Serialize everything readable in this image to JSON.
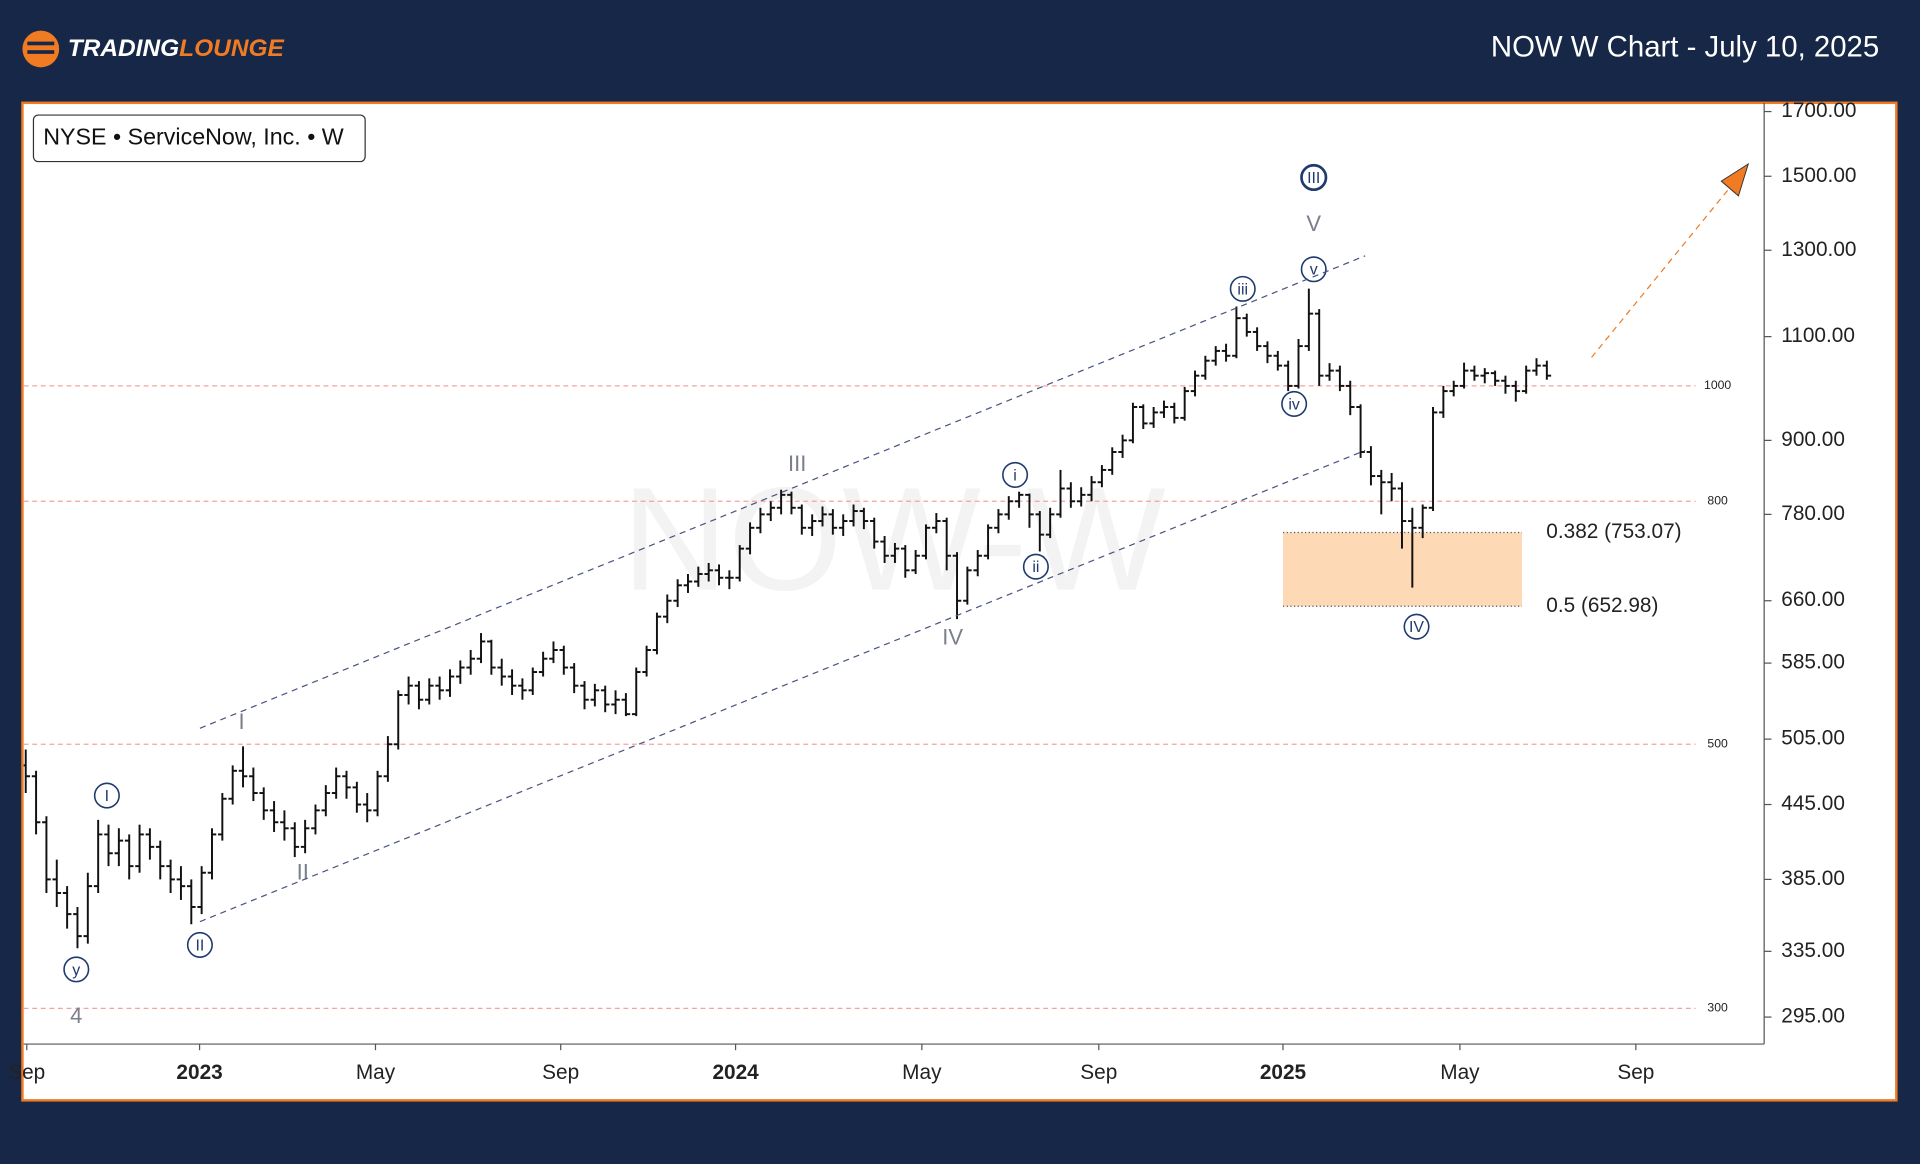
{
  "brand_first": "TRADING",
  "brand_second": "LOUNGE",
  "header_title": "NOW W Chart - July 10, 2025",
  "chart_data": {
    "type": "ohlc",
    "legend_text": "NYSE • ServiceNow, Inc. • W",
    "watermark": "NOW-W",
    "log_scale": true,
    "ylim": [
      280,
      1729
    ],
    "yticks": [
      {
        "value": 1700,
        "label": "1700.00"
      },
      {
        "value": 1500,
        "label": "1500.00"
      },
      {
        "value": 1300,
        "label": "1300.00"
      },
      {
        "value": 1100,
        "label": "1100.00"
      },
      {
        "value": 900,
        "label": "900.00"
      },
      {
        "value": 780,
        "label": "780.00"
      },
      {
        "value": 660,
        "label": "660.00"
      },
      {
        "value": 585,
        "label": "585.00"
      },
      {
        "value": 505,
        "label": "505.00"
      },
      {
        "value": 445,
        "label": "445.00"
      },
      {
        "value": 385,
        "label": "385.00"
      },
      {
        "value": 335,
        "label": "335.00"
      },
      {
        "value": 295,
        "label": "295.00"
      }
    ],
    "xlim": [
      -0.2,
      168
    ],
    "xticks": [
      {
        "value": 0.1,
        "label": "Sep"
      },
      {
        "value": 16.8,
        "label": "2023"
      },
      {
        "value": 33.8,
        "label": "May"
      },
      {
        "value": 51.7,
        "label": "Sep"
      },
      {
        "value": 68.6,
        "label": "2024"
      },
      {
        "value": 86.6,
        "label": "May"
      },
      {
        "value": 103.7,
        "label": "Sep"
      },
      {
        "value": 121.5,
        "label": "2025"
      },
      {
        "value": 138.6,
        "label": "May"
      },
      {
        "value": 155.6,
        "label": "Sep"
      }
    ],
    "price_lines": [
      1000,
      800,
      500,
      300
    ],
    "fib_levels": [
      {
        "value": 753.07,
        "label": "0.382 (753.07)"
      },
      {
        "value": 652.98,
        "label": "0.5 (652.98)"
      }
    ],
    "annotations": [
      {
        "text": "III",
        "circled": true
      },
      {
        "text": "V",
        "circled": false
      },
      {
        "text": "v",
        "circled": true
      },
      {
        "text": "iii",
        "circled": true
      },
      {
        "text": "iv",
        "circled": true
      },
      {
        "text": "IV",
        "circled": true
      },
      {
        "text": "III",
        "circled": false
      },
      {
        "text": "i",
        "circled": true
      },
      {
        "text": "ii",
        "circled": true
      },
      {
        "text": "IV",
        "circled": false
      },
      {
        "text": "I",
        "circled": false
      },
      {
        "text": "II",
        "circled": false
      },
      {
        "text": "I",
        "circled": true
      },
      {
        "text": "II",
        "circled": true
      },
      {
        "text": "y",
        "circled": true
      },
      {
        "text": "4",
        "circled": false
      }
    ],
    "open": [
      480,
      470,
      430,
      385,
      375,
      360,
      345,
      380,
      420,
      405,
      415,
      395,
      420,
      410,
      395,
      385,
      380,
      365,
      390,
      420,
      450,
      475,
      470,
      455,
      440,
      430,
      425,
      410,
      425,
      440,
      455,
      470,
      460,
      445,
      440,
      470,
      500,
      550,
      560,
      545,
      560,
      555,
      570,
      580,
      590,
      610,
      580,
      570,
      560,
      555,
      575,
      590,
      600,
      580,
      560,
      545,
      555,
      540,
      545,
      530,
      575,
      600,
      640,
      660,
      680,
      685,
      695,
      700,
      690,
      690,
      730,
      760,
      780,
      790,
      810,
      790,
      760,
      770,
      780,
      760,
      770,
      785,
      770,
      740,
      720,
      730,
      700,
      720,
      760,
      770,
      720,
      660,
      700,
      720,
      760,
      780,
      800,
      810,
      780,
      750,
      780,
      820,
      800,
      810,
      830,
      850,
      880,
      900,
      960,
      930,
      950,
      960,
      940,
      990,
      1020,
      1050,
      1070,
      1060,
      1140,
      1110,
      1080,
      1060,
      1040,
      1000,
      1080,
      1150,
      1020,
      1030,
      1000,
      960,
      880,
      840,
      830,
      820,
      770,
      760,
      790,
      950,
      990,
      1000,
      1030,
      1020,
      1025,
      1010,
      1000,
      990,
      1030,
      1040
    ],
    "high": [
      495,
      475,
      435,
      400,
      380,
      365,
      390,
      432,
      428,
      425,
      420,
      428,
      425,
      415,
      400,
      395,
      385,
      395,
      425,
      455,
      480,
      498,
      478,
      460,
      448,
      440,
      430,
      432,
      445,
      462,
      478,
      475,
      465,
      455,
      475,
      508,
      555,
      570,
      565,
      568,
      570,
      578,
      588,
      600,
      620,
      612,
      590,
      578,
      568,
      580,
      598,
      610,
      605,
      585,
      565,
      562,
      560,
      555,
      552,
      580,
      605,
      645,
      668,
      688,
      695,
      705,
      710,
      708,
      700,
      735,
      768,
      790,
      800,
      818,
      815,
      795,
      780,
      792,
      788,
      780,
      795,
      790,
      775,
      748,
      738,
      735,
      728,
      765,
      782,
      775,
      725,
      705,
      728,
      765,
      788,
      808,
      815,
      812,
      785,
      790,
      850,
      830,
      822,
      840,
      858,
      888,
      910,
      968,
      965,
      960,
      972,
      968,
      998,
      1030,
      1060,
      1080,
      1085,
      1166,
      1150,
      1120,
      1090,
      1070,
      1050,
      1095,
      1207,
      1160,
      1045,
      1040,
      1010,
      965,
      890,
      850,
      845,
      830,
      790,
      795,
      960,
      1000,
      1010,
      1046,
      1040,
      1035,
      1030,
      1020,
      1010,
      1040,
      1055,
      1050
    ],
    "low": [
      455,
      420,
      375,
      365,
      350,
      337,
      340,
      375,
      395,
      395,
      385,
      390,
      400,
      385,
      375,
      370,
      353,
      360,
      385,
      415,
      445,
      460,
      448,
      432,
      422,
      415,
      402,
      405,
      420,
      435,
      450,
      450,
      438,
      430,
      435,
      465,
      495,
      540,
      535,
      540,
      545,
      548,
      562,
      572,
      585,
      572,
      560,
      550,
      545,
      550,
      570,
      585,
      572,
      552,
      535,
      538,
      532,
      530,
      528,
      528,
      570,
      595,
      632,
      652,
      670,
      678,
      685,
      680,
      675,
      685,
      722,
      752,
      770,
      780,
      780,
      750,
      748,
      762,
      750,
      748,
      762,
      758,
      730,
      710,
      710,
      690,
      695,
      715,
      752,
      700,
      637,
      655,
      692,
      715,
      752,
      772,
      790,
      760,
      726,
      745,
      775,
      790,
      792,
      800,
      822,
      842,
      870,
      895,
      920,
      922,
      940,
      930,
      935,
      980,
      1012,
      1040,
      1048,
      1055,
      1100,
      1070,
      1045,
      1030,
      990,
      995,
      1070,
      1000,
      1010,
      990,
      945,
      870,
      825,
      780,
      800,
      730,
      677,
      745,
      785,
      940,
      980,
      995,
      1010,
      1005,
      1000,
      985,
      970,
      985,
      1020,
      1012
    ],
    "close": [
      470,
      430,
      385,
      375,
      360,
      345,
      380,
      420,
      405,
      415,
      395,
      420,
      410,
      395,
      385,
      380,
      365,
      390,
      420,
      450,
      475,
      470,
      455,
      440,
      430,
      425,
      410,
      425,
      440,
      455,
      470,
      460,
      445,
      440,
      470,
      500,
      550,
      560,
      545,
      560,
      555,
      570,
      580,
      590,
      610,
      580,
      570,
      560,
      555,
      575,
      590,
      600,
      580,
      560,
      545,
      555,
      540,
      545,
      530,
      575,
      600,
      640,
      660,
      680,
      685,
      695,
      700,
      690,
      690,
      730,
      760,
      780,
      790,
      810,
      790,
      760,
      770,
      780,
      760,
      770,
      785,
      770,
      740,
      720,
      730,
      700,
      720,
      760,
      770,
      720,
      660,
      700,
      720,
      760,
      780,
      800,
      810,
      780,
      750,
      780,
      820,
      800,
      810,
      830,
      850,
      880,
      900,
      960,
      930,
      950,
      960,
      940,
      990,
      1020,
      1050,
      1070,
      1060,
      1140,
      1110,
      1080,
      1060,
      1040,
      1000,
      1080,
      1150,
      1020,
      1030,
      1000,
      960,
      880,
      840,
      830,
      820,
      770,
      760,
      790,
      950,
      990,
      1000,
      1030,
      1020,
      1025,
      1010,
      1000,
      990,
      1030,
      1040,
      1020
    ]
  }
}
